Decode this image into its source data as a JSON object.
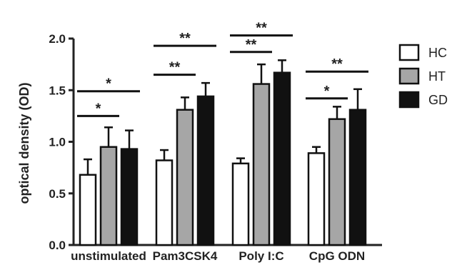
{
  "chart_data": {
    "type": "bar",
    "ylabel": "optical density (OD)",
    "xlabel": "",
    "ylim": [
      0.0,
      2.0
    ],
    "yticks": [
      "0.0",
      "0.5",
      "1.0",
      "1.5",
      "2.0"
    ],
    "categories": [
      "unstimulated",
      "Pam3CSK4",
      "Poly I:C",
      "CpG ODN"
    ],
    "series": [
      {
        "name": "HC",
        "color": "#ffffff",
        "values": [
          0.68,
          0.82,
          0.79,
          0.89
        ],
        "errors": [
          0.15,
          0.1,
          0.05,
          0.06
        ]
      },
      {
        "name": "HT",
        "color": "#a6a6a6",
        "values": [
          0.95,
          1.31,
          1.56,
          1.22
        ],
        "errors": [
          0.19,
          0.12,
          0.19,
          0.12
        ]
      },
      {
        "name": "GD",
        "color": "#111111",
        "values": [
          0.93,
          1.44,
          1.67,
          1.31
        ],
        "errors": [
          0.18,
          0.13,
          0.12,
          0.2
        ]
      }
    ],
    "legend_position": "right",
    "grid": false,
    "annotations": [
      {
        "label": "*",
        "category": 0,
        "from": "HC",
        "to": "HT",
        "y": 1.25
      },
      {
        "label": "*",
        "category": 0,
        "from": "HC",
        "to": "GD",
        "y": 1.49
      },
      {
        "label": "**",
        "category": 1,
        "from": "HC",
        "to": "HT",
        "y": 1.65
      },
      {
        "label": "**",
        "category": 1,
        "from": "HC",
        "to": "GD",
        "y": 1.93
      },
      {
        "label": "**",
        "category": 2,
        "from": "HC",
        "to": "HT",
        "y": 1.87
      },
      {
        "label": "**",
        "category": 2,
        "from": "HC",
        "to": "GD",
        "y": 2.03
      },
      {
        "label": "*",
        "category": 3,
        "from": "HC",
        "to": "HT",
        "y": 1.42
      },
      {
        "label": "**",
        "category": 3,
        "from": "HC",
        "to": "GD",
        "y": 1.68
      }
    ]
  }
}
